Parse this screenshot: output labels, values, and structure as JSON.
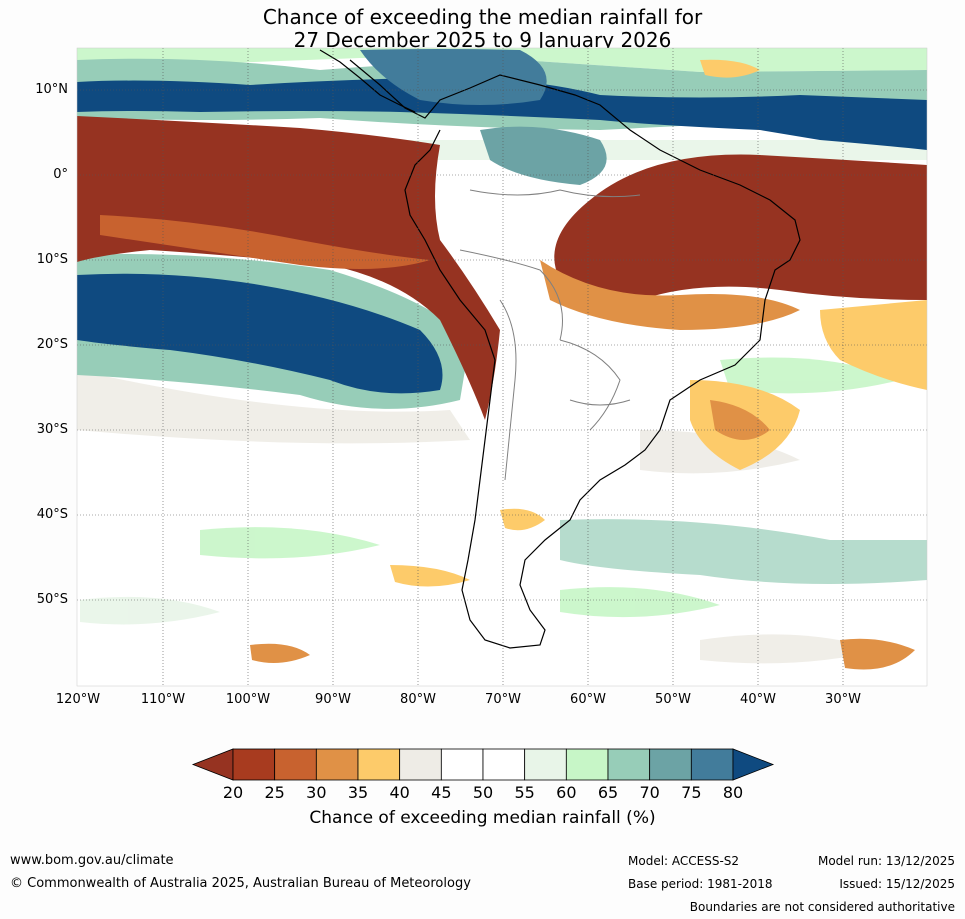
{
  "title": {
    "line1": "Chance of exceeding the median rainfall for",
    "line2": "27 December 2025 to 9 January 2026"
  },
  "axes": {
    "lat_labels": [
      "10°N",
      "0°",
      "10°S",
      "20°S",
      "30°S",
      "40°S",
      "50°S"
    ],
    "lon_labels": [
      "120°W",
      "110°W",
      "100°W",
      "90°W",
      "80°W",
      "70°W",
      "60°W",
      "50°W",
      "40°W",
      "30°W"
    ]
  },
  "colorbar": {
    "ticks": [
      "20",
      "25",
      "30",
      "35",
      "40",
      "45",
      "50",
      "55",
      "60",
      "65",
      "70",
      "75",
      "80"
    ],
    "colors": [
      "#a83b1f",
      "#c8622f",
      "#e09146",
      "#fdcb6a",
      "#eeece6",
      "#ffffff",
      "#ffffff",
      "#e8f5e8",
      "#c7f6c7",
      "#97cdb8",
      "#6ca3a5",
      "#427c9b"
    ],
    "under_color": "#963321",
    "over_color": "#0f4a80",
    "label": "Chance of exceeding median rainfall (%)"
  },
  "footer": {
    "website": "www.bom.gov.au/climate",
    "copyright": "© Commonwealth of Australia 2025, Australian Bureau of Meteorology",
    "model": "Model: ACCESS-S2",
    "base_period": "Base period: 1981-2018",
    "model_run": "Model run: 13/12/2025",
    "issued": "Issued: 15/12/2025",
    "disclaimer": "Boundaries are not considered authoritative"
  }
}
